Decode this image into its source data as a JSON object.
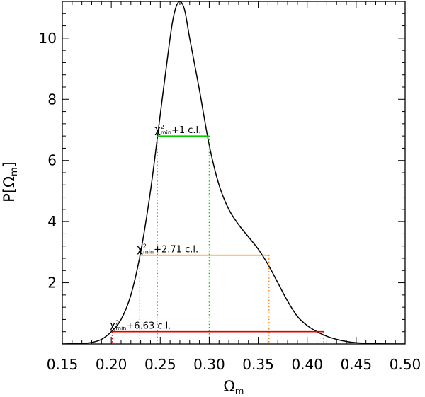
{
  "chart_data": {
    "type": "line",
    "xlabel": "Ωm",
    "ylabel": "P[Ωm]",
    "xlim": [
      0.15,
      0.5
    ],
    "ylim": [
      0,
      11.2
    ],
    "xticks": [
      0.15,
      0.2,
      0.25,
      0.3,
      0.35,
      0.4,
      0.45,
      0.5
    ],
    "xtick_labels": [
      "0.15",
      "0.20",
      "0.25",
      "0.30",
      "0.35",
      "0.40",
      "0.45",
      "0.50"
    ],
    "yticks": [
      2,
      4,
      6,
      8,
      10
    ],
    "ytick_labels": [
      "2",
      "4",
      "6",
      "8",
      "10"
    ],
    "grid": false,
    "series": [
      {
        "color": "#000000",
        "points": [
          [
            0.15,
            0.0
          ],
          [
            0.17,
            0.02
          ],
          [
            0.18,
            0.05
          ],
          [
            0.19,
            0.15
          ],
          [
            0.2,
            0.4
          ],
          [
            0.21,
            0.8
          ],
          [
            0.22,
            1.6
          ],
          [
            0.23,
            3.0
          ],
          [
            0.24,
            5.0
          ],
          [
            0.25,
            7.5
          ],
          [
            0.26,
            10.0
          ],
          [
            0.265,
            10.9
          ],
          [
            0.27,
            11.2
          ],
          [
            0.275,
            10.9
          ],
          [
            0.28,
            10.0
          ],
          [
            0.29,
            8.3
          ],
          [
            0.3,
            6.5
          ],
          [
            0.31,
            5.2
          ],
          [
            0.32,
            4.4
          ],
          [
            0.33,
            3.9
          ],
          [
            0.34,
            3.5
          ],
          [
            0.35,
            3.1
          ],
          [
            0.36,
            2.6
          ],
          [
            0.37,
            2.0
          ],
          [
            0.38,
            1.4
          ],
          [
            0.39,
            0.9
          ],
          [
            0.4,
            0.6
          ],
          [
            0.41,
            0.4
          ],
          [
            0.42,
            0.25
          ],
          [
            0.43,
            0.15
          ],
          [
            0.44,
            0.08
          ],
          [
            0.45,
            0.04
          ],
          [
            0.47,
            0.01
          ],
          [
            0.5,
            0.0
          ]
        ]
      }
    ],
    "confidence_intervals": [
      {
        "label_sup": "2",
        "label_sub": "min",
        "label_prefix": "χ",
        "label_suffix": "+1  c.l.",
        "color": "#00cc00",
        "y": 6.8,
        "x_low": 0.247,
        "x_high": 0.3
      },
      {
        "label_sup": "2",
        "label_sub": "min",
        "label_prefix": "χ",
        "label_suffix": "+2.71  c.l.",
        "color": "#ff8000",
        "y": 2.9,
        "x_low": 0.229,
        "x_high": 0.361
      },
      {
        "label_sup": "2",
        "label_sub": "min",
        "label_prefix": "χ",
        "label_suffix": "+6.63  c.l.",
        "color": "#dd0000",
        "y": 0.4,
        "x_low": 0.201,
        "x_high": 0.417
      }
    ]
  }
}
